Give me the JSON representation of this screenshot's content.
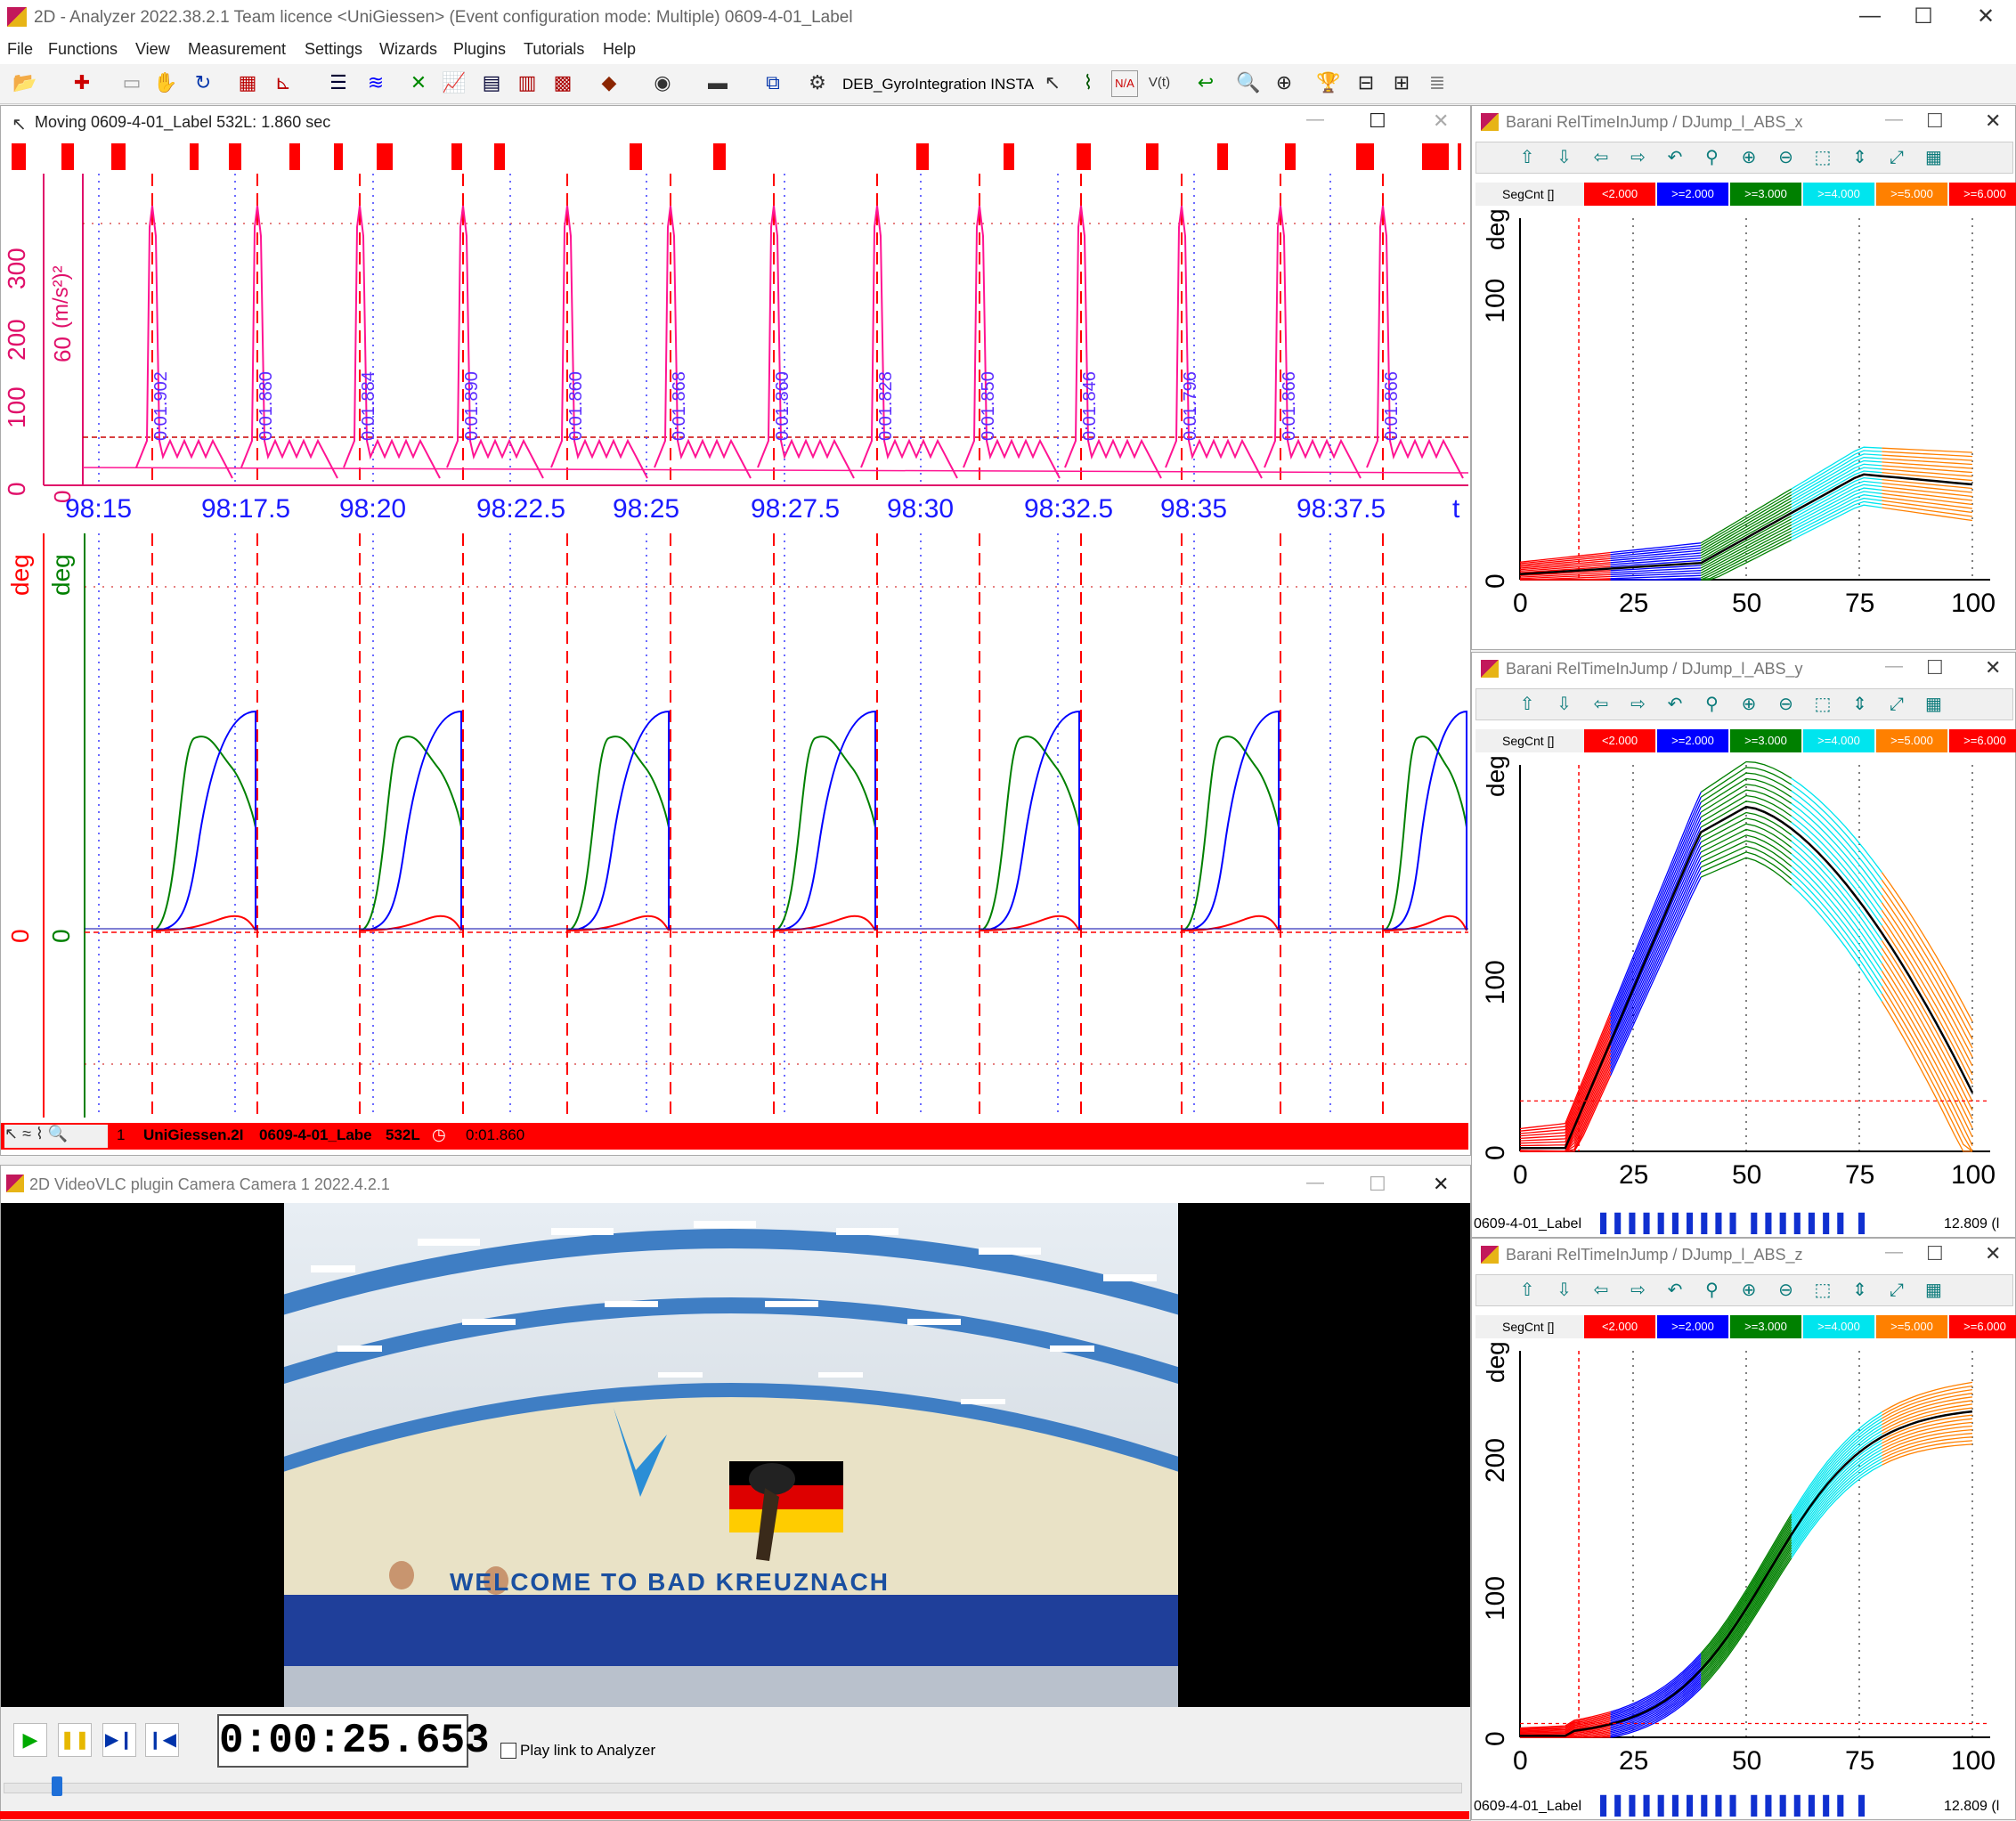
{
  "window": {
    "title": "2D - Analyzer 2022.38.2.1   Team licence   <UniGiessen>   (Event configuration mode: Multiple)   0609-4-01_Label",
    "min": "—",
    "max": "☐",
    "close": "✕"
  },
  "menu": [
    "File",
    "Functions",
    "View",
    "Measurement",
    "Settings",
    "Wizards",
    "Plugins",
    "Tutorials",
    "Help"
  ],
  "toolbar": {
    "plugin_label": "DEB_GyroIntegration INSTA"
  },
  "moving": {
    "title": "Moving   0609-4-01_Label 532L: 1.860 sec",
    "top_axis_labels": [
      "300",
      "200",
      "100",
      "0"
    ],
    "top_axis2_labels": [
      "60",
      "0"
    ],
    "top_unit": "(m/s²)²",
    "time_ticks": [
      "98:15",
      "98:17.5",
      "98:20",
      "98:22.5",
      "98:25",
      "98:27.5",
      "98:30",
      "98:32.5",
      "98:35",
      "98:37.5",
      "t"
    ],
    "segment_labels": [
      "0:01.902",
      "0:01.880",
      "0:01.884",
      "0:01.890",
      "0:01.860",
      "0:01.868",
      "0:01.860",
      "0:01.828",
      "0:01.850",
      "0:01.846",
      "0:01.796",
      "0:01.866",
      "0:01.866"
    ],
    "bottom_unit_red": "deg",
    "bottom_unit_green": "deg",
    "zero": "0",
    "status": {
      "num": "1",
      "site": "UniGiessen.2I",
      "label": "0609-4-01_Labe",
      "count": "532L",
      "time": "0:01.860"
    }
  },
  "barani": [
    {
      "title": "Barani   RelTimeInJump / DJump_l_ABS_x",
      "unit": "deg",
      "yticks": [
        "100",
        "0"
      ],
      "xticks": [
        "0",
        "25",
        "50",
        "75",
        "100"
      ]
    },
    {
      "title": "Barani   RelTimeInJump / DJump_l_ABS_y",
      "unit": "deg",
      "yticks": [
        "100",
        "0"
      ],
      "xticks": [
        "0",
        "25",
        "50",
        "75",
        "100"
      ],
      "footer_label": "0609-4-01_Label",
      "footer_value": "12.809 (l"
    },
    {
      "title": "Barani   RelTimeInJump / DJump_l_ABS_z",
      "unit": "deg",
      "yticks": [
        "200",
        "100",
        "0"
      ],
      "xticks": [
        "0",
        "25",
        "50",
        "75",
        "100"
      ],
      "footer_label": "0609-4-01_Label",
      "footer_value": "12.809 (l"
    }
  ],
  "legend": {
    "label": "SegCnt []",
    "cells": [
      {
        "t": "<2.000",
        "c": "#ff0000"
      },
      {
        "t": ">=2.000",
        "c": "#0000ff"
      },
      {
        "t": ">=3.000",
        "c": "#008000"
      },
      {
        "t": ">=4.000",
        "c": "#00e5ee"
      },
      {
        "t": ">=5.000",
        "c": "#ff8000"
      },
      {
        "t": ">=6.000",
        "c": "#ff0000"
      }
    ]
  },
  "video": {
    "title": "2D VideoVLC plugin    Camera Camera 1    2022.4.2.1",
    "time": "0:00:25.653",
    "play_link": "Play link to Analyzer",
    "wall_text": "WELCOME  TO  BAD KREUZNACH"
  }
}
